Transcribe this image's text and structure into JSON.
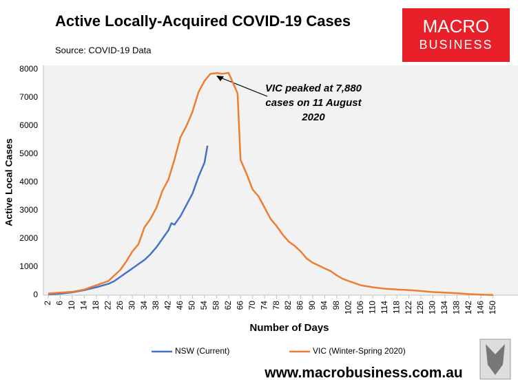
{
  "chart_data": {
    "type": "line",
    "title": "Active Locally-Acquired COVID-19 Cases",
    "subtitle": "Source: COVID-19 Data",
    "x_label": "Number of Days",
    "y_label": "Active Local Cases",
    "annotation": [
      "VIC peaked at 7,880",
      "cases on 11 August",
      "2020"
    ],
    "logo": [
      "MACRO",
      "BUSINESS"
    ],
    "website": "www.macrobusiness.com.au",
    "xlim": [
      0.4,
      158.3
    ],
    "ylim": [
      0,
      8000
    ],
    "xticks": [
      2,
      6,
      10,
      14,
      18,
      22,
      26,
      30,
      34,
      38,
      42,
      46,
      50,
      54,
      58,
      62,
      66,
      70,
      74,
      78,
      82,
      86,
      90,
      94,
      98,
      102,
      106,
      110,
      114,
      118,
      122,
      126,
      130,
      134,
      138,
      142,
      146,
      150
    ],
    "yticks": [
      0,
      1000,
      2000,
      3000,
      4000,
      5000,
      6000,
      7000,
      8000
    ],
    "series": [
      {
        "name": "NSW (Current)",
        "color": "#4472c4",
        "x": [
          2,
          6,
          10,
          14,
          18,
          22,
          24,
          26,
          28,
          30,
          32,
          34,
          36,
          38,
          40,
          42,
          43,
          44,
          46,
          48,
          50,
          52,
          54,
          55
        ],
        "values": [
          30,
          50,
          100,
          180,
          280,
          400,
          500,
          650,
          800,
          950,
          1100,
          1250,
          1450,
          1700,
          2000,
          2300,
          2550,
          2500,
          2800,
          3200,
          3600,
          4200,
          4700,
          5300
        ]
      },
      {
        "name": "VIC (Winter-Spring 2020)",
        "color": "#ed7d31",
        "x": [
          2,
          6,
          10,
          14,
          18,
          22,
          24,
          26,
          28,
          30,
          32,
          34,
          36,
          38,
          40,
          42,
          44,
          46,
          48,
          50,
          52,
          54,
          56,
          58,
          60,
          62,
          64,
          65,
          66,
          68,
          70,
          72,
          74,
          76,
          78,
          80,
          82,
          84,
          86,
          88,
          90,
          92,
          94,
          96,
          98,
          100,
          102,
          106,
          110,
          114,
          118,
          122,
          126,
          130,
          134,
          138,
          142,
          146,
          150
        ],
        "values": [
          60,
          90,
          120,
          200,
          350,
          500,
          700,
          900,
          1200,
          1550,
          1800,
          2400,
          2700,
          3100,
          3700,
          4100,
          4800,
          5600,
          6000,
          6500,
          7200,
          7600,
          7850,
          7870,
          7850,
          7880,
          7400,
          7150,
          4800,
          4300,
          3750,
          3500,
          3100,
          2700,
          2450,
          2150,
          1900,
          1750,
          1550,
          1300,
          1150,
          1050,
          950,
          850,
          700,
          580,
          500,
          350,
          280,
          230,
          200,
          180,
          150,
          110,
          90,
          70,
          40,
          20,
          5
        ]
      }
    ]
  }
}
